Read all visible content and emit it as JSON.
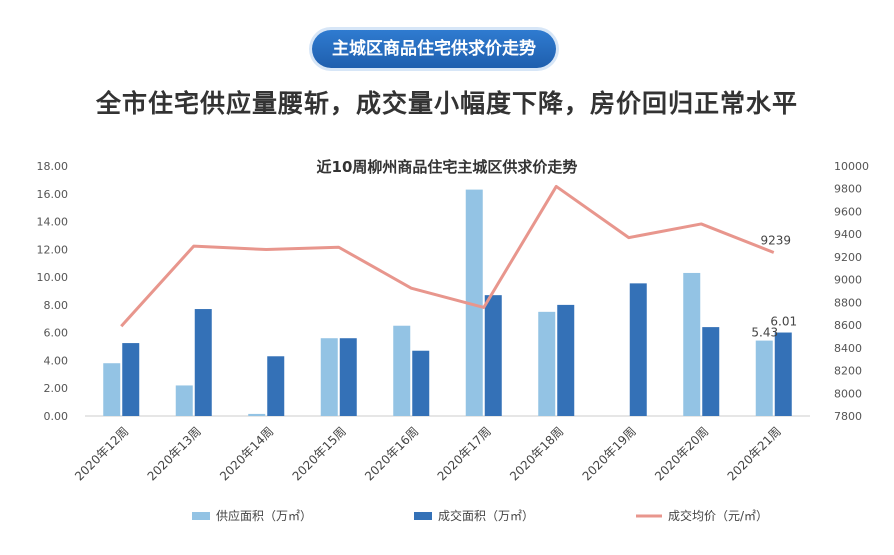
{
  "header": {
    "badge": "主城区商品住宅供求价走势",
    "headline": "全市住宅供应量腰斩，成交量小幅度下降，房价回归正常水平"
  },
  "chart_data": {
    "type": "bar",
    "title": "近10周柳州商品住宅主城区供求价走势",
    "categories": [
      "2020年12周",
      "2020年13周",
      "2020年14周",
      "2020年15周",
      "2020年16周",
      "2020年17周",
      "2020年18周",
      "2020年19周",
      "2020年20周",
      "2020年21周"
    ],
    "series": [
      {
        "name": "供应面积（万㎡）",
        "type": "bar",
        "axis": "left",
        "color": "#93c3e4",
        "values": [
          3.8,
          2.2,
          0.15,
          5.6,
          6.5,
          16.3,
          7.5,
          0,
          10.3,
          5.43
        ]
      },
      {
        "name": "成交面积（万㎡）",
        "type": "bar",
        "axis": "left",
        "color": "#3471b7",
        "values": [
          5.25,
          7.7,
          4.3,
          5.6,
          4.7,
          8.7,
          8.0,
          9.55,
          6.4,
          6.01
        ]
      },
      {
        "name": "成交均价（元/㎡）",
        "type": "line",
        "axis": "right",
        "color": "#e8968d",
        "values": [
          8590,
          9295,
          9265,
          9285,
          8925,
          8755,
          9820,
          9370,
          9490,
          9239
        ]
      }
    ],
    "y_left": {
      "min": 0,
      "max": 18,
      "step": 2,
      "ticks": [
        "0.00",
        "2.00",
        "4.00",
        "6.00",
        "8.00",
        "10.00",
        "12.00",
        "14.00",
        "16.00",
        "18.00"
      ]
    },
    "y_right": {
      "min": 7800,
      "max": 10000,
      "step": 200,
      "ticks": [
        "7800",
        "8000",
        "8200",
        "8400",
        "8600",
        "8800",
        "9000",
        "9200",
        "9400",
        "9600",
        "9800",
        "10000"
      ]
    },
    "data_labels": {
      "supply_last": "5.43",
      "deal_last": "6.01",
      "price_last": "9239"
    },
    "legend_position": "bottom",
    "grid": false
  }
}
